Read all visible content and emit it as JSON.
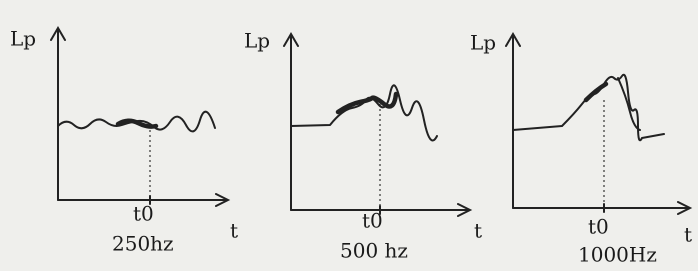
{
  "panels": [
    {
      "y_label": "Lp",
      "x_label": "t",
      "marker_label": "t0",
      "frequency": "250hz"
    },
    {
      "y_label": "Lp",
      "x_label": "t",
      "marker_label": "t0",
      "frequency": "500 hz"
    },
    {
      "y_label": "Lp",
      "x_label": "t",
      "marker_label": "t0",
      "frequency": "1000Hz"
    }
  ]
}
